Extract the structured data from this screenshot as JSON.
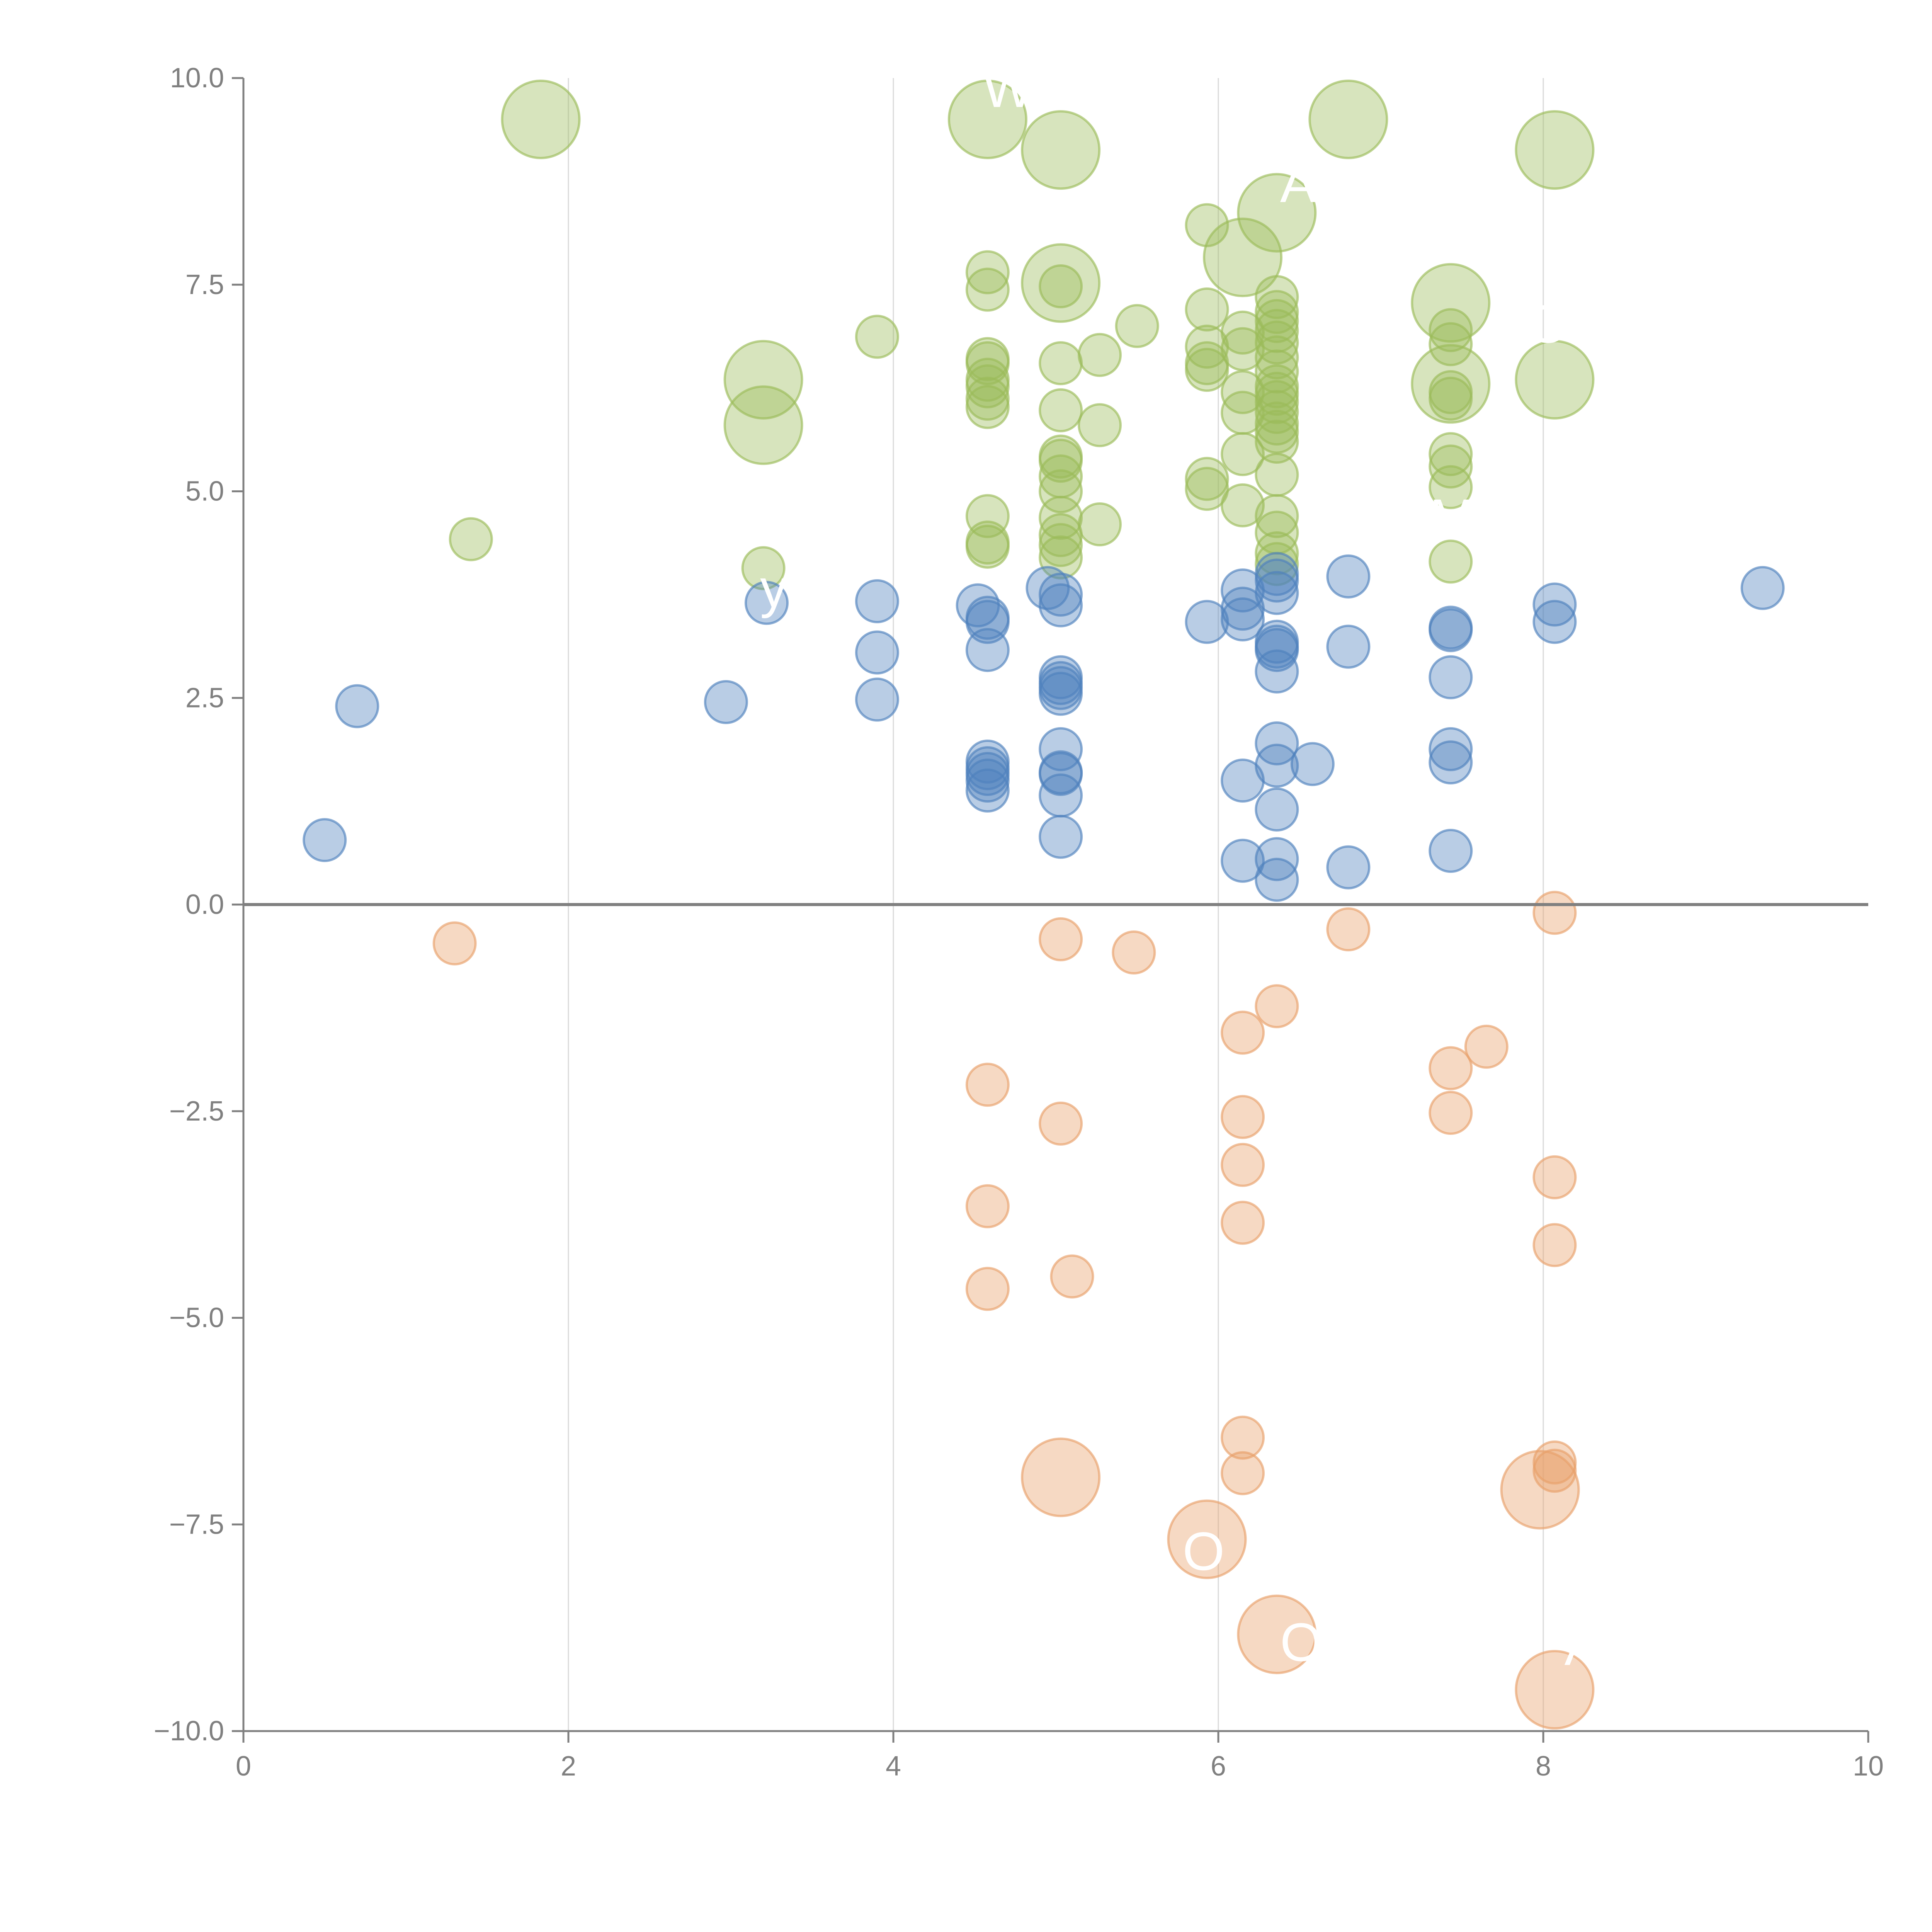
{
  "chart_data": {
    "type": "scatter",
    "title": "",
    "xlabel": "",
    "ylabel": "",
    "xlim": [
      0,
      10
    ],
    "ylim": [
      -10,
      10
    ],
    "x_ticks": [
      0,
      2,
      4,
      6,
      8,
      10
    ],
    "x_tick_labels": [
      "0",
      "2",
      "4",
      "6",
      "8",
      "10"
    ],
    "y_ticks": [
      10,
      7.5,
      5,
      2.5,
      0,
      -2.5,
      -5,
      -7.5,
      -10
    ],
    "y_tick_labels": [
      "10.0",
      "7.5",
      "5.0",
      "2.5",
      "0.0",
      "−2.5",
      "−5.0",
      "−7.5",
      "−10.0"
    ],
    "x_gridlines": [
      2,
      4,
      6,
      8
    ],
    "zero_line": 0,
    "legend": "none",
    "colors": {
      "green": "#9bbb59",
      "blue": "#4f81bd",
      "orange": "#e8a06a",
      "axis": "#808080",
      "grid": "#d9d9d9"
    },
    "series": [
      {
        "name": "green",
        "color": "#9bbb59",
        "size": "small",
        "points": [
          [
            1.4,
            4.42
          ],
          [
            3.2,
            4.07
          ],
          [
            3.9,
            6.87
          ],
          [
            5.5,
            7.0
          ],
          [
            4.58,
            7.65
          ],
          [
            4.58,
            7.44
          ],
          [
            4.58,
            6.6
          ],
          [
            4.58,
            6.55
          ],
          [
            4.58,
            6.35
          ],
          [
            4.58,
            6.27
          ],
          [
            4.58,
            6.12
          ],
          [
            4.58,
            6.02
          ],
          [
            4.58,
            4.7
          ],
          [
            4.58,
            4.38
          ],
          [
            4.58,
            4.33
          ],
          [
            5.03,
            7.48
          ],
          [
            5.03,
            6.55
          ],
          [
            5.03,
            5.98
          ],
          [
            5.03,
            5.42
          ],
          [
            5.03,
            5.37
          ],
          [
            5.03,
            5.18
          ],
          [
            5.03,
            5.0
          ],
          [
            5.03,
            4.68
          ],
          [
            5.03,
            4.47
          ],
          [
            5.03,
            4.35
          ],
          [
            5.03,
            4.2
          ],
          [
            5.27,
            6.65
          ],
          [
            5.27,
            5.8
          ],
          [
            5.27,
            4.6
          ],
          [
            5.93,
            8.22
          ],
          [
            5.93,
            7.2
          ],
          [
            5.93,
            6.75
          ],
          [
            5.93,
            6.55
          ],
          [
            5.93,
            6.47
          ],
          [
            5.93,
            5.15
          ],
          [
            5.93,
            5.03
          ],
          [
            6.15,
            6.92
          ],
          [
            6.15,
            6.72
          ],
          [
            6.15,
            6.2
          ],
          [
            6.15,
            5.95
          ],
          [
            6.15,
            5.45
          ],
          [
            6.15,
            4.83
          ],
          [
            6.36,
            7.35
          ],
          [
            6.36,
            7.17
          ],
          [
            6.36,
            7.06
          ],
          [
            6.36,
            6.94
          ],
          [
            6.36,
            6.8
          ],
          [
            6.36,
            6.62
          ],
          [
            6.36,
            6.45
          ],
          [
            6.36,
            6.27
          ],
          [
            6.36,
            6.18
          ],
          [
            6.36,
            6.08
          ],
          [
            6.36,
            5.96
          ],
          [
            6.36,
            5.82
          ],
          [
            6.36,
            5.72
          ],
          [
            6.36,
            5.6
          ],
          [
            6.36,
            5.2
          ],
          [
            6.36,
            4.7
          ],
          [
            6.36,
            4.5
          ],
          [
            6.36,
            4.25
          ],
          [
            6.36,
            4.12
          ],
          [
            7.43,
            6.95
          ],
          [
            7.43,
            6.78
          ],
          [
            7.43,
            6.2
          ],
          [
            7.43,
            6.12
          ],
          [
            7.43,
            5.45
          ],
          [
            7.43,
            5.3
          ],
          [
            7.43,
            5.05
          ],
          [
            7.43,
            4.15
          ]
        ]
      },
      {
        "name": "green-labeled",
        "color": "#9bbb59",
        "size": "large",
        "points": [
          [
            1.83,
            9.5
          ],
          [
            4.58,
            9.5
          ],
          [
            5.03,
            9.13
          ],
          [
            5.03,
            7.52
          ],
          [
            6.15,
            7.83
          ],
          [
            6.36,
            8.37
          ],
          [
            6.8,
            9.5
          ],
          [
            8.07,
            9.13
          ],
          [
            3.2,
            6.35
          ],
          [
            3.2,
            5.8
          ],
          [
            7.43,
            7.28
          ],
          [
            7.43,
            6.3
          ],
          [
            8.07,
            6.35
          ]
        ]
      },
      {
        "name": "blue",
        "color": "#4f81bd",
        "size": "small",
        "points": [
          [
            0.5,
            0.78
          ],
          [
            0.7,
            2.4
          ],
          [
            2.97,
            2.45
          ],
          [
            3.22,
            3.65
          ],
          [
            3.9,
            3.67
          ],
          [
            3.9,
            3.05
          ],
          [
            3.9,
            2.48
          ],
          [
            4.52,
            3.62
          ],
          [
            4.58,
            3.47
          ],
          [
            4.58,
            3.42
          ],
          [
            4.58,
            3.08
          ],
          [
            4.58,
            1.73
          ],
          [
            4.58,
            1.65
          ],
          [
            4.58,
            1.58
          ],
          [
            4.58,
            1.5
          ],
          [
            4.58,
            1.38
          ],
          [
            4.95,
            3.83
          ],
          [
            5.03,
            3.75
          ],
          [
            5.03,
            3.62
          ],
          [
            5.03,
            2.75
          ],
          [
            5.03,
            2.68
          ],
          [
            5.03,
            2.62
          ],
          [
            5.03,
            2.55
          ],
          [
            5.03,
            1.88
          ],
          [
            5.03,
            1.6
          ],
          [
            5.03,
            1.58
          ],
          [
            5.03,
            1.32
          ],
          [
            5.03,
            0.82
          ],
          [
            5.93,
            3.42
          ],
          [
            6.15,
            3.8
          ],
          [
            6.15,
            3.58
          ],
          [
            6.15,
            3.45
          ],
          [
            6.15,
            1.5
          ],
          [
            6.15,
            0.53
          ],
          [
            6.36,
            4.0
          ],
          [
            6.36,
            3.92
          ],
          [
            6.36,
            3.77
          ],
          [
            6.36,
            3.18
          ],
          [
            6.36,
            3.12
          ],
          [
            6.36,
            3.08
          ],
          [
            6.36,
            2.82
          ],
          [
            6.36,
            1.95
          ],
          [
            6.36,
            1.68
          ],
          [
            6.36,
            1.15
          ],
          [
            6.36,
            0.55
          ],
          [
            6.36,
            0.3
          ],
          [
            6.58,
            1.7
          ],
          [
            6.8,
            3.97
          ],
          [
            6.8,
            3.12
          ],
          [
            6.8,
            0.45
          ],
          [
            7.43,
            3.35
          ],
          [
            7.43,
            3.32
          ],
          [
            7.43,
            2.75
          ],
          [
            7.43,
            1.88
          ],
          [
            7.43,
            1.72
          ],
          [
            7.43,
            0.65
          ],
          [
            8.07,
            3.63
          ],
          [
            8.07,
            3.42
          ],
          [
            9.35,
            3.83
          ]
        ]
      },
      {
        "name": "orange",
        "color": "#e8a06a",
        "size": "small",
        "points": [
          [
            1.3,
            -0.47
          ],
          [
            5.03,
            -0.42
          ],
          [
            5.48,
            -0.58
          ],
          [
            6.8,
            -0.3
          ],
          [
            8.07,
            -0.1
          ],
          [
            6.36,
            -1.23
          ],
          [
            6.15,
            -1.55
          ],
          [
            7.65,
            -1.72
          ],
          [
            7.43,
            -1.98
          ],
          [
            4.58,
            -2.18
          ],
          [
            5.03,
            -2.65
          ],
          [
            6.15,
            -2.57
          ],
          [
            6.15,
            -3.15
          ],
          [
            7.43,
            -2.52
          ],
          [
            8.07,
            -3.3
          ],
          [
            4.58,
            -3.65
          ],
          [
            6.15,
            -3.85
          ],
          [
            8.07,
            -4.12
          ],
          [
            4.58,
            -4.65
          ],
          [
            5.1,
            -4.5
          ],
          [
            6.15,
            -6.45
          ],
          [
            6.15,
            -6.88
          ],
          [
            8.07,
            -6.75
          ],
          [
            8.07,
            -6.85
          ]
        ]
      },
      {
        "name": "orange-labeled",
        "color": "#e8a06a",
        "size": "large",
        "points": [
          [
            5.03,
            -6.93
          ],
          [
            5.93,
            -7.68
          ],
          [
            6.36,
            -8.83
          ],
          [
            7.98,
            -7.08
          ],
          [
            8.07,
            -9.5
          ]
        ]
      }
    ],
    "annotations": [
      {
        "text": "WH",
        "x": 4.55,
        "y": 9.65
      },
      {
        "text": "A",
        "x": 6.38,
        "y": 8.5
      },
      {
        "text": "O",
        "x": 7.9,
        "y": 6.8
      },
      {
        "text": "M",
        "x": 7.3,
        "y": 4.45
      },
      {
        "text": "y",
        "x": 3.18,
        "y": 3.6
      },
      {
        "text": "O",
        "x": 5.78,
        "y": -8.05
      },
      {
        "text": "O",
        "x": 6.38,
        "y": -9.15
      },
      {
        "text": "A",
        "x": 8.13,
        "y": -9.2
      }
    ]
  }
}
